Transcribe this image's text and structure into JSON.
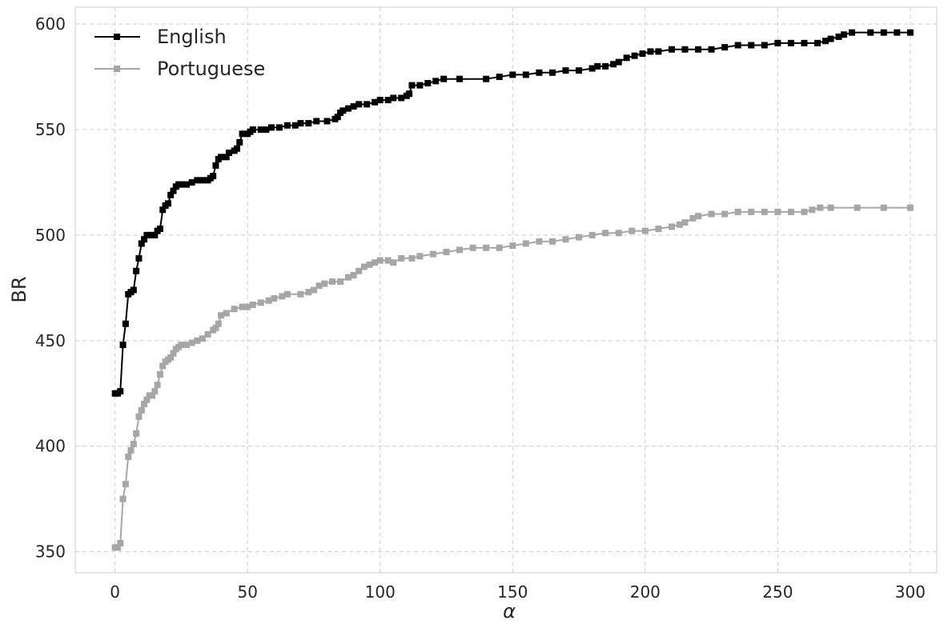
{
  "chart_data": {
    "type": "line",
    "title": "",
    "xlabel": "α",
    "ylabel": "BR",
    "xlim": [
      -15,
      310
    ],
    "ylim": [
      340,
      608
    ],
    "xticks": [
      0,
      50,
      100,
      150,
      200,
      250,
      300
    ],
    "yticks": [
      350,
      400,
      450,
      500,
      550,
      600
    ],
    "grid": true,
    "legend_position": "top-left",
    "marker": "square",
    "series": [
      {
        "name": "English",
        "color": "#000000",
        "points": [
          [
            0,
            425
          ],
          [
            1,
            425
          ],
          [
            2,
            426
          ],
          [
            3,
            448
          ],
          [
            4,
            458
          ],
          [
            5,
            472
          ],
          [
            6,
            473
          ],
          [
            7,
            474
          ],
          [
            8,
            483
          ],
          [
            9,
            489
          ],
          [
            10,
            496
          ],
          [
            11,
            498
          ],
          [
            12,
            500
          ],
          [
            13,
            500
          ],
          [
            14,
            500
          ],
          [
            15,
            500
          ],
          [
            16,
            502
          ],
          [
            17,
            503
          ],
          [
            18,
            512
          ],
          [
            19,
            514
          ],
          [
            20,
            515
          ],
          [
            21,
            519
          ],
          [
            22,
            521
          ],
          [
            23,
            523
          ],
          [
            24,
            524
          ],
          [
            25,
            524
          ],
          [
            27,
            524
          ],
          [
            29,
            525
          ],
          [
            31,
            526
          ],
          [
            33,
            526
          ],
          [
            35,
            526
          ],
          [
            36,
            527
          ],
          [
            37,
            528
          ],
          [
            38,
            533
          ],
          [
            39,
            536
          ],
          [
            40,
            537
          ],
          [
            42,
            537
          ],
          [
            43,
            539
          ],
          [
            45,
            540
          ],
          [
            46,
            541
          ],
          [
            47,
            544
          ],
          [
            48,
            548
          ],
          [
            50,
            548
          ],
          [
            51,
            549
          ],
          [
            52,
            550
          ],
          [
            55,
            550
          ],
          [
            57,
            550
          ],
          [
            59,
            551
          ],
          [
            62,
            551
          ],
          [
            65,
            552
          ],
          [
            68,
            552
          ],
          [
            70,
            553
          ],
          [
            73,
            553
          ],
          [
            76,
            554
          ],
          [
            80,
            554
          ],
          [
            83,
            555
          ],
          [
            84,
            556
          ],
          [
            85,
            558
          ],
          [
            86,
            559
          ],
          [
            88,
            560
          ],
          [
            90,
            561
          ],
          [
            92,
            562
          ],
          [
            95,
            562
          ],
          [
            98,
            563
          ],
          [
            100,
            564
          ],
          [
            103,
            564
          ],
          [
            105,
            565
          ],
          [
            108,
            565
          ],
          [
            110,
            566
          ],
          [
            111,
            567
          ],
          [
            112,
            571
          ],
          [
            115,
            571
          ],
          [
            118,
            572
          ],
          [
            121,
            573
          ],
          [
            124,
            574
          ],
          [
            130,
            574
          ],
          [
            140,
            574
          ],
          [
            145,
            575
          ],
          [
            150,
            576
          ],
          [
            155,
            576
          ],
          [
            160,
            577
          ],
          [
            165,
            577
          ],
          [
            170,
            578
          ],
          [
            175,
            578
          ],
          [
            180,
            579
          ],
          [
            182,
            580
          ],
          [
            185,
            580
          ],
          [
            188,
            581
          ],
          [
            190,
            582
          ],
          [
            193,
            584
          ],
          [
            196,
            585
          ],
          [
            199,
            586
          ],
          [
            202,
            587
          ],
          [
            205,
            587
          ],
          [
            210,
            588
          ],
          [
            215,
            588
          ],
          [
            220,
            588
          ],
          [
            225,
            588
          ],
          [
            230,
            589
          ],
          [
            235,
            590
          ],
          [
            240,
            590
          ],
          [
            245,
            590
          ],
          [
            250,
            591
          ],
          [
            255,
            591
          ],
          [
            260,
            591
          ],
          [
            265,
            591
          ],
          [
            268,
            592
          ],
          [
            270,
            593
          ],
          [
            273,
            594
          ],
          [
            275,
            595
          ],
          [
            278,
            596
          ],
          [
            285,
            596
          ],
          [
            290,
            596
          ],
          [
            295,
            596
          ],
          [
            300,
            596
          ]
        ]
      },
      {
        "name": "Portuguese",
        "color": "#a6a6a6",
        "points": [
          [
            0,
            352
          ],
          [
            1,
            352
          ],
          [
            2,
            354
          ],
          [
            3,
            375
          ],
          [
            4,
            382
          ],
          [
            5,
            395
          ],
          [
            6,
            398
          ],
          [
            7,
            401
          ],
          [
            8,
            406
          ],
          [
            9,
            414
          ],
          [
            10,
            417
          ],
          [
            11,
            420
          ],
          [
            12,
            422
          ],
          [
            13,
            424
          ],
          [
            14,
            424
          ],
          [
            15,
            426
          ],
          [
            16,
            429
          ],
          [
            17,
            434
          ],
          [
            18,
            438
          ],
          [
            19,
            440
          ],
          [
            20,
            441
          ],
          [
            21,
            442
          ],
          [
            22,
            444
          ],
          [
            23,
            446
          ],
          [
            24,
            447
          ],
          [
            25,
            448
          ],
          [
            27,
            448
          ],
          [
            29,
            449
          ],
          [
            31,
            450
          ],
          [
            33,
            451
          ],
          [
            35,
            453
          ],
          [
            37,
            455
          ],
          [
            38,
            456
          ],
          [
            39,
            458
          ],
          [
            40,
            462
          ],
          [
            42,
            463
          ],
          [
            45,
            465
          ],
          [
            48,
            466
          ],
          [
            50,
            466
          ],
          [
            52,
            467
          ],
          [
            55,
            468
          ],
          [
            58,
            469
          ],
          [
            60,
            470
          ],
          [
            63,
            471
          ],
          [
            65,
            472
          ],
          [
            70,
            472
          ],
          [
            73,
            473
          ],
          [
            75,
            474
          ],
          [
            77,
            476
          ],
          [
            79,
            477
          ],
          [
            82,
            478
          ],
          [
            85,
            478
          ],
          [
            88,
            480
          ],
          [
            90,
            481
          ],
          [
            92,
            483
          ],
          [
            94,
            485
          ],
          [
            96,
            486
          ],
          [
            98,
            487
          ],
          [
            100,
            488
          ],
          [
            103,
            488
          ],
          [
            105,
            487
          ],
          [
            108,
            489
          ],
          [
            112,
            489
          ],
          [
            115,
            490
          ],
          [
            120,
            491
          ],
          [
            125,
            492
          ],
          [
            130,
            493
          ],
          [
            135,
            494
          ],
          [
            140,
            494
          ],
          [
            145,
            494
          ],
          [
            150,
            495
          ],
          [
            155,
            496
          ],
          [
            160,
            497
          ],
          [
            165,
            497
          ],
          [
            170,
            498
          ],
          [
            175,
            499
          ],
          [
            180,
            500
          ],
          [
            185,
            501
          ],
          [
            190,
            501
          ],
          [
            195,
            502
          ],
          [
            200,
            502
          ],
          [
            205,
            503
          ],
          [
            210,
            504
          ],
          [
            213,
            505
          ],
          [
            215,
            506
          ],
          [
            218,
            508
          ],
          [
            220,
            509
          ],
          [
            225,
            510
          ],
          [
            230,
            510
          ],
          [
            235,
            511
          ],
          [
            240,
            511
          ],
          [
            245,
            511
          ],
          [
            250,
            511
          ],
          [
            255,
            511
          ],
          [
            260,
            511
          ],
          [
            263,
            512
          ],
          [
            266,
            513
          ],
          [
            270,
            513
          ],
          [
            280,
            513
          ],
          [
            290,
            513
          ],
          [
            300,
            513
          ]
        ]
      }
    ]
  }
}
